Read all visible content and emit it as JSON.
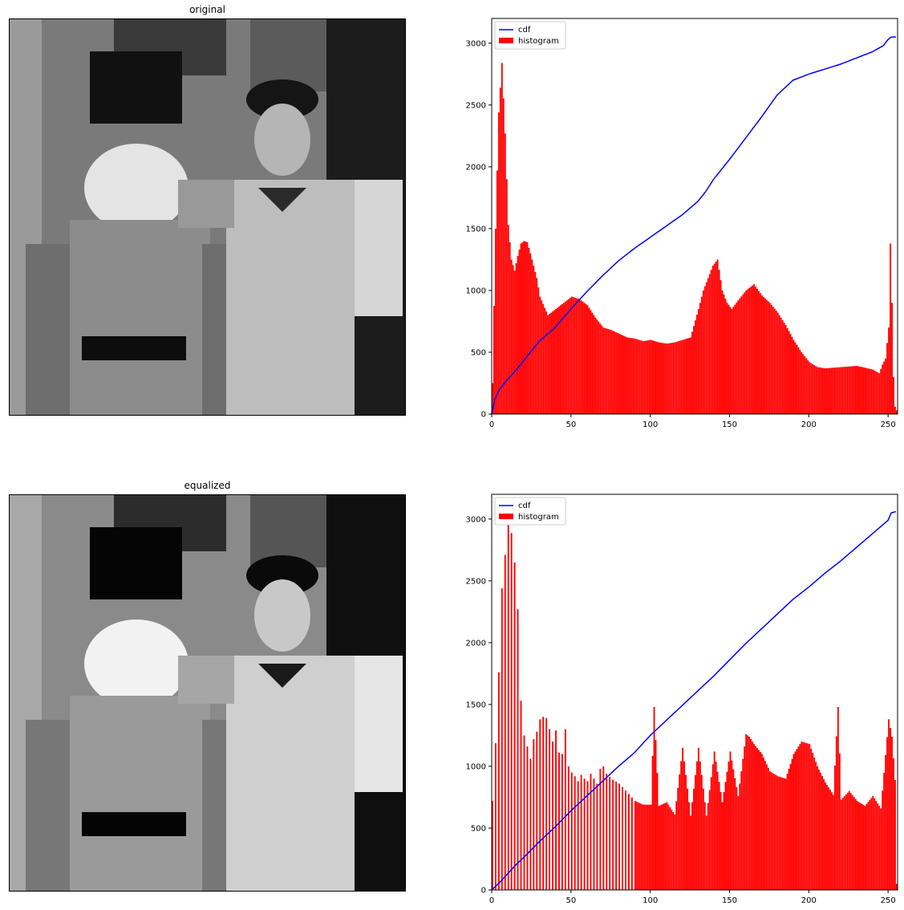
{
  "panels": {
    "top_title": "original",
    "bottom_title": "equalized"
  },
  "legend": {
    "cdf_label": "cdf",
    "hist_label": "histogram"
  },
  "colors": {
    "cdf": "#0000ff",
    "histogram": "#ff0000",
    "axes": "#000000"
  },
  "chart_data": [
    {
      "type": "bar",
      "subtype": "histogram-with-cdf",
      "title": "",
      "xlabel": "",
      "ylabel": "",
      "xlim": [
        0,
        256
      ],
      "ylim": [
        0,
        3200
      ],
      "xticks": [
        0,
        50,
        100,
        150,
        200,
        250
      ],
      "yticks": [
        0,
        500,
        1000,
        1500,
        2000,
        2500,
        3000
      ],
      "legend_position": "top-left",
      "series": [
        {
          "name": "histogram",
          "kind": "bar",
          "x": [
            0,
            2,
            4,
            6,
            8,
            10,
            12,
            14,
            16,
            18,
            20,
            22,
            24,
            26,
            28,
            30,
            35,
            40,
            45,
            50,
            55,
            60,
            65,
            70,
            75,
            80,
            85,
            90,
            95,
            100,
            105,
            110,
            115,
            120,
            125,
            130,
            133,
            136,
            139,
            142,
            145,
            148,
            151,
            155,
            160,
            165,
            170,
            175,
            180,
            185,
            190,
            195,
            200,
            205,
            210,
            220,
            230,
            240,
            244,
            246,
            248,
            250,
            251,
            252,
            253,
            254,
            255
          ],
          "values": [
            250,
            1500,
            2440,
            2840,
            2270,
            1530,
            1250,
            1160,
            1280,
            1380,
            1400,
            1390,
            1300,
            1200,
            1100,
            950,
            800,
            850,
            900,
            950,
            930,
            880,
            780,
            700,
            680,
            650,
            620,
            610,
            590,
            600,
            580,
            570,
            580,
            600,
            620,
            850,
            1000,
            1100,
            1200,
            1250,
            1000,
            900,
            850,
            920,
            1000,
            1050,
            960,
            900,
            820,
            720,
            600,
            500,
            420,
            380,
            370,
            380,
            390,
            360,
            330,
            400,
            450,
            700,
            1380,
            900,
            300,
            60,
            30
          ]
        },
        {
          "name": "cdf",
          "kind": "line",
          "x": [
            0,
            2,
            5,
            10,
            15,
            20,
            30,
            40,
            50,
            60,
            70,
            80,
            90,
            100,
            110,
            120,
            130,
            135,
            140,
            150,
            160,
            170,
            180,
            190,
            200,
            210,
            220,
            230,
            240,
            247,
            250,
            252,
            255
          ],
          "values": [
            0,
            120,
            200,
            280,
            350,
            430,
            590,
            700,
            850,
            990,
            1120,
            1240,
            1340,
            1430,
            1520,
            1610,
            1720,
            1800,
            1900,
            2060,
            2230,
            2400,
            2580,
            2700,
            2750,
            2790,
            2830,
            2880,
            2930,
            2980,
            3030,
            3050,
            3050
          ]
        }
      ]
    },
    {
      "type": "bar",
      "subtype": "histogram-with-cdf",
      "title": "",
      "xlabel": "",
      "ylabel": "",
      "xlim": [
        0,
        256
      ],
      "ylim": [
        0,
        3200
      ],
      "xticks": [
        0,
        50,
        100,
        150,
        200,
        250
      ],
      "yticks": [
        0,
        500,
        1000,
        1500,
        2000,
        2500,
        3000
      ],
      "legend_position": "top-left",
      "series": [
        {
          "name": "histogram",
          "kind": "bar",
          "x": [
            0,
            3,
            6,
            10,
            13,
            16,
            18,
            20,
            22,
            24,
            26,
            28,
            30,
            32,
            34,
            36,
            38,
            40,
            42,
            44,
            46,
            48,
            50,
            52,
            54,
            56,
            58,
            60,
            62,
            64,
            66,
            68,
            70,
            72,
            75,
            80,
            85,
            90,
            95,
            100,
            102,
            105,
            110,
            115,
            120,
            125,
            130,
            135,
            140,
            145,
            150,
            155,
            160,
            162,
            165,
            170,
            175,
            180,
            185,
            190,
            195,
            200,
            205,
            210,
            215,
            218,
            220,
            225,
            230,
            235,
            240,
            245,
            250,
            252,
            254,
            255
          ],
          "values": [
            720,
            1420,
            2440,
            2980,
            2840,
            2270,
            1530,
            1250,
            1160,
            1060,
            1220,
            1280,
            1380,
            1400,
            1390,
            1300,
            1200,
            1290,
            1110,
            1100,
            1300,
            1000,
            950,
            920,
            880,
            930,
            900,
            880,
            940,
            900,
            860,
            980,
            1000,
            940,
            900,
            860,
            790,
            720,
            690,
            690,
            1480,
            680,
            710,
            610,
            1150,
            600,
            1150,
            600,
            1120,
            710,
            1120,
            760,
            1260,
            1240,
            1180,
            1100,
            960,
            920,
            900,
            1100,
            1200,
            1180,
            1000,
            870,
            770,
            1480,
            730,
            800,
            720,
            680,
            760,
            660,
            1380,
            1240,
            890,
            50
          ]
        },
        {
          "name": "cdf",
          "kind": "line",
          "x": [
            0,
            5,
            10,
            15,
            20,
            30,
            40,
            50,
            60,
            70,
            80,
            90,
            100,
            110,
            120,
            130,
            140,
            150,
            160,
            170,
            180,
            190,
            200,
            210,
            220,
            230,
            240,
            250,
            252,
            255
          ],
          "values": [
            0,
            60,
            130,
            200,
            260,
            390,
            510,
            640,
            760,
            880,
            1000,
            1110,
            1250,
            1370,
            1490,
            1610,
            1730,
            1860,
            1990,
            2110,
            2230,
            2350,
            2450,
            2560,
            2660,
            2770,
            2880,
            2990,
            3050,
            3060
          ]
        }
      ]
    }
  ]
}
